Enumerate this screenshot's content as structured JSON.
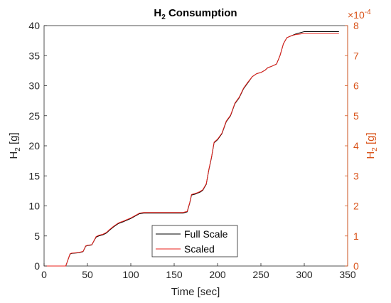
{
  "chart_data": {
    "type": "line",
    "title": "H",
    "title_sub": "2",
    "title_rest": " Consumption",
    "xlabel": "Time [sec]",
    "ylabel_left": "H",
    "ylabel_left_sub": "2",
    "ylabel_left_unit": " [g]",
    "ylabel_right": "H",
    "ylabel_right_sub": "2",
    "ylabel_right_unit": " [g]",
    "right_exponent_base": "×10",
    "right_exponent_power": "-4",
    "xlim": [
      0,
      350
    ],
    "ylim_left": [
      0,
      40
    ],
    "ylim_right": [
      0,
      8
    ],
    "xticks": [
      "0",
      "50",
      "100",
      "150",
      "200",
      "250",
      "300",
      "350"
    ],
    "yticks_left": [
      "0",
      "5",
      "10",
      "15",
      "20",
      "25",
      "30",
      "35",
      "40"
    ],
    "yticks_right": [
      "0",
      "1",
      "2",
      "3",
      "4",
      "5",
      "6",
      "7",
      "8"
    ],
    "grid": false,
    "legend_position": "bottom-center",
    "colors": {
      "full_scale": "#000000",
      "scaled": "#e8211b",
      "right_axis": "#d95319"
    },
    "series": [
      {
        "name": "Full Scale",
        "axis": "left",
        "x": [
          0,
          25,
          28,
          30,
          32,
          40,
          45,
          48,
          50,
          55,
          58,
          60,
          63,
          68,
          72,
          75,
          80,
          85,
          88,
          92,
          95,
          100,
          105,
          110,
          115,
          140,
          160,
          165,
          168,
          170,
          175,
          180,
          183,
          187,
          190,
          193,
          196,
          200,
          205,
          210,
          215,
          220,
          225,
          230,
          235,
          240,
          245,
          250,
          255,
          258,
          262,
          268,
          272,
          276,
          280,
          285,
          290,
          295,
          300,
          320,
          340
        ],
        "y": [
          0,
          0,
          1.2,
          2.0,
          2.1,
          2.2,
          2.4,
          3.3,
          3.4,
          3.5,
          4.3,
          4.8,
          5.0,
          5.2,
          5.5,
          5.9,
          6.5,
          7.0,
          7.2,
          7.4,
          7.6,
          7.9,
          8.3,
          8.7,
          8.8,
          8.8,
          8.8,
          9.0,
          10.5,
          11.8,
          12.0,
          12.3,
          12.6,
          13.6,
          16.0,
          18.0,
          20.5,
          21.0,
          22.0,
          24.0,
          25.0,
          27.0,
          28.0,
          29.5,
          30.5,
          31.5,
          32.0,
          32.2,
          32.6,
          33.0,
          33.2,
          33.6,
          35.0,
          37.0,
          38.0,
          38.3,
          38.6,
          38.8,
          39.0,
          39.0,
          39.0
        ]
      },
      {
        "name": "Scaled",
        "axis": "right",
        "x": [
          0,
          25,
          28,
          30,
          32,
          40,
          45,
          48,
          50,
          55,
          58,
          60,
          63,
          68,
          72,
          75,
          80,
          85,
          88,
          92,
          95,
          100,
          105,
          110,
          115,
          140,
          160,
          165,
          168,
          170,
          175,
          180,
          183,
          187,
          190,
          193,
          196,
          200,
          205,
          210,
          215,
          220,
          225,
          230,
          235,
          240,
          245,
          250,
          255,
          258,
          262,
          268,
          272,
          276,
          280,
          285,
          290,
          295,
          300,
          320,
          340
        ],
        "y": [
          0,
          0,
          0.25,
          0.41,
          0.43,
          0.45,
          0.49,
          0.67,
          0.69,
          0.71,
          0.87,
          0.98,
          1.02,
          1.06,
          1.12,
          1.2,
          1.32,
          1.42,
          1.46,
          1.5,
          1.54,
          1.6,
          1.68,
          1.76,
          1.78,
          1.78,
          1.78,
          1.82,
          2.12,
          2.38,
          2.42,
          2.48,
          2.54,
          2.74,
          3.22,
          3.62,
          4.12,
          4.22,
          4.42,
          4.82,
          5.02,
          5.42,
          5.62,
          5.92,
          6.12,
          6.3,
          6.4,
          6.44,
          6.52,
          6.6,
          6.64,
          6.72,
          7.0,
          7.4,
          7.6,
          7.66,
          7.7,
          7.72,
          7.74,
          7.74,
          7.74
        ]
      }
    ]
  }
}
